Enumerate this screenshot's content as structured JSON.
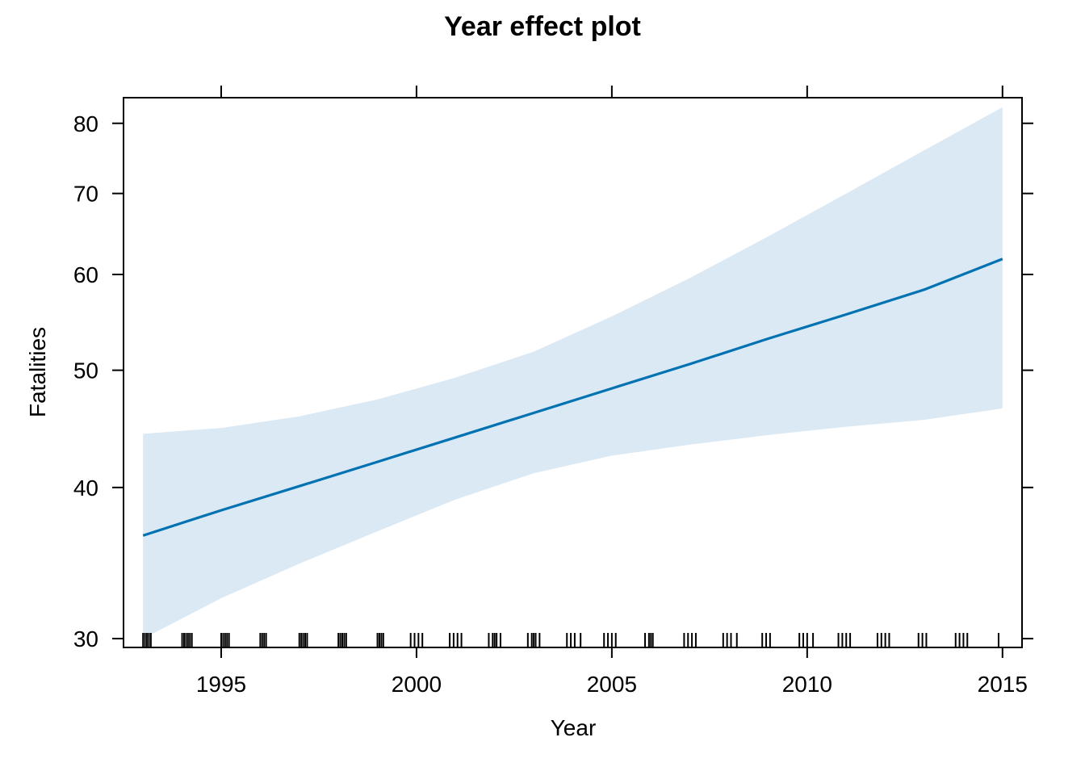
{
  "chart_data": {
    "type": "line",
    "title": "Year effect plot",
    "xlabel": "Year",
    "ylabel": "Fatalities",
    "xlim": [
      1992.5,
      2015.5
    ],
    "ylim": [
      29.5,
      84
    ],
    "yscale": "log",
    "grid": false,
    "colors": {
      "line": "#0072b2",
      "band": "#dbe9f5",
      "axis": "#000000"
    },
    "x_ticks": [
      1995,
      2000,
      2005,
      2010,
      2015
    ],
    "x_tick_labels": [
      "1995",
      "2000",
      "2005",
      "2010",
      "2015"
    ],
    "y_ticks": [
      30,
      40,
      50,
      60,
      70,
      80
    ],
    "y_tick_labels": [
      "30",
      "40",
      "50",
      "60",
      "70",
      "80"
    ],
    "series": [
      {
        "x": [
          1993,
          1995,
          1997,
          1999,
          2001,
          2003,
          2005,
          2007,
          2009,
          2011,
          2013,
          2015
        ],
        "y": [
          36.5,
          38.3,
          40.1,
          42.0,
          44.0,
          46.1,
          48.3,
          50.6,
          53.1,
          55.6,
          58.3,
          61.8
        ]
      }
    ],
    "confidence_band": {
      "x": [
        1993,
        1995,
        1997,
        1999,
        2001,
        2003,
        2005,
        2007,
        2009,
        2011,
        2013,
        2015
      ],
      "lower": [
        30.0,
        32.4,
        34.6,
        36.8,
        39.1,
        41.1,
        42.5,
        43.4,
        44.2,
        44.9,
        45.5,
        46.5
      ],
      "upper": [
        44.3,
        44.8,
        45.8,
        47.3,
        49.3,
        51.8,
        55.4,
        59.6,
        64.5,
        70.0,
        76.0,
        82.5
      ]
    },
    "rug_x": [
      1993.0,
      1993.05,
      1993.1,
      1993.15,
      1993.2,
      1994.0,
      1994.05,
      1994.1,
      1994.15,
      1994.2,
      1994.25,
      1995.0,
      1995.05,
      1995.1,
      1995.15,
      1995.2,
      1996.0,
      1996.05,
      1996.1,
      1996.15,
      1997.0,
      1997.05,
      1997.1,
      1997.15,
      1997.2,
      1998.0,
      1998.05,
      1998.1,
      1998.15,
      1998.2,
      1999.0,
      1999.05,
      1999.1,
      1999.15,
      1999.85,
      1999.95,
      2000.05,
      2000.15,
      2000.85,
      2000.95,
      2001.05,
      2001.15,
      2001.85,
      2001.95,
      2002.0,
      2002.05,
      2002.15,
      2002.85,
      2002.95,
      2003.0,
      2003.05,
      2003.15,
      2003.85,
      2003.95,
      2004.05,
      2004.2,
      2004.8,
      2004.9,
      2005.0,
      2005.1,
      2005.85,
      2005.95,
      2006.0,
      2006.05,
      2006.85,
      2006.95,
      2007.05,
      2007.15,
      2007.85,
      2007.95,
      2008.05,
      2008.2,
      2008.85,
      2008.95,
      2009.05,
      2009.8,
      2009.9,
      2010.0,
      2010.15,
      2010.8,
      2010.9,
      2011.0,
      2011.1,
      2011.8,
      2011.9,
      2012.0,
      2012.1,
      2012.85,
      2012.95,
      2013.05,
      2013.8,
      2013.9,
      2014.0,
      2014.1,
      2014.9
    ]
  }
}
